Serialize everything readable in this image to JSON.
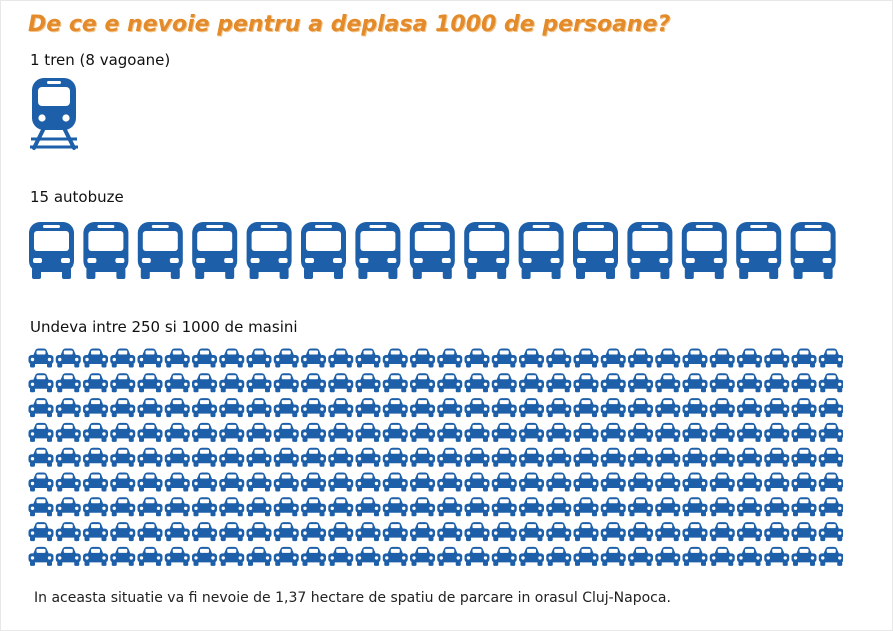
{
  "title": "De ce e nevoie pentru a deplasa 1000 de persoane?",
  "train": {
    "label": "1 tren (8 vagoane)",
    "count": 1
  },
  "buses": {
    "label": "15 autobuze",
    "count": 15
  },
  "cars": {
    "label": "Undeva intre 250 si 1000 de masini",
    "rows": 9,
    "per_row": 30
  },
  "footer": "In aceasta situatie va fi nevoie de 1,37 hectare de spatiu de parcare in orasul Cluj-Napoca.",
  "colors": {
    "icon": "#1d5fa8",
    "title": "#e38b2b"
  },
  "icons": {
    "train": "train-icon",
    "bus": "bus-icon",
    "car": "car-icon"
  }
}
